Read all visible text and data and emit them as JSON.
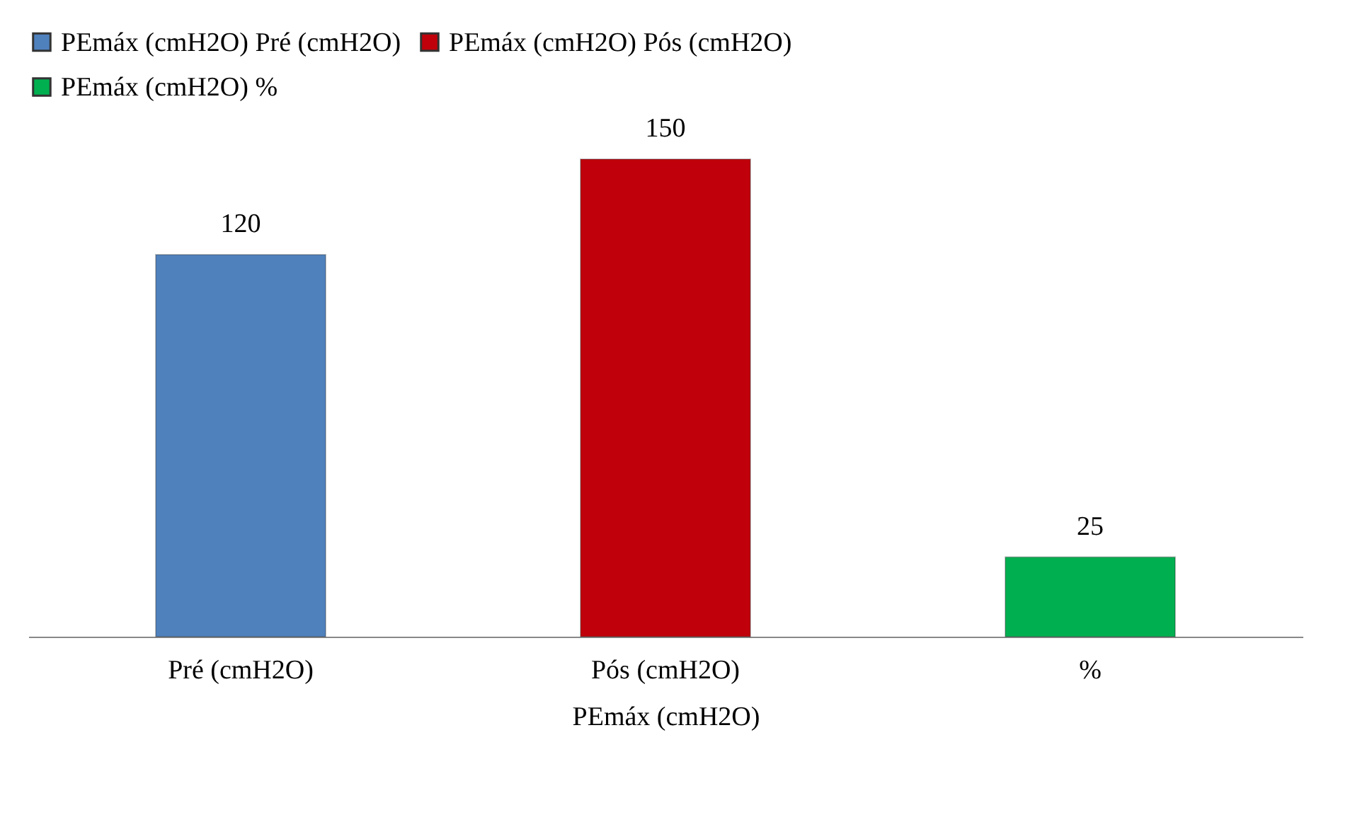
{
  "chart_data": {
    "type": "bar",
    "categories": [
      "Pré (cmH2O)",
      "Pós (cmH2O)",
      "%"
    ],
    "xlabel": "PEmáx (cmH2O)",
    "series": [
      {
        "name": "PEmáx (cmH2O) Pré (cmH2O)",
        "color": "#4f81bd",
        "values": [
          120,
          null,
          null
        ]
      },
      {
        "name": "PEmáx (cmH2O) Pós (cmH2O)",
        "color": "#c0000b",
        "values": [
          null,
          150,
          null
        ]
      },
      {
        "name": "PEmáx (cmH2O) %",
        "color": "#00b050",
        "values": [
          null,
          null,
          25
        ]
      }
    ],
    "data_labels": true,
    "legend": "top",
    "grid": false
  }
}
